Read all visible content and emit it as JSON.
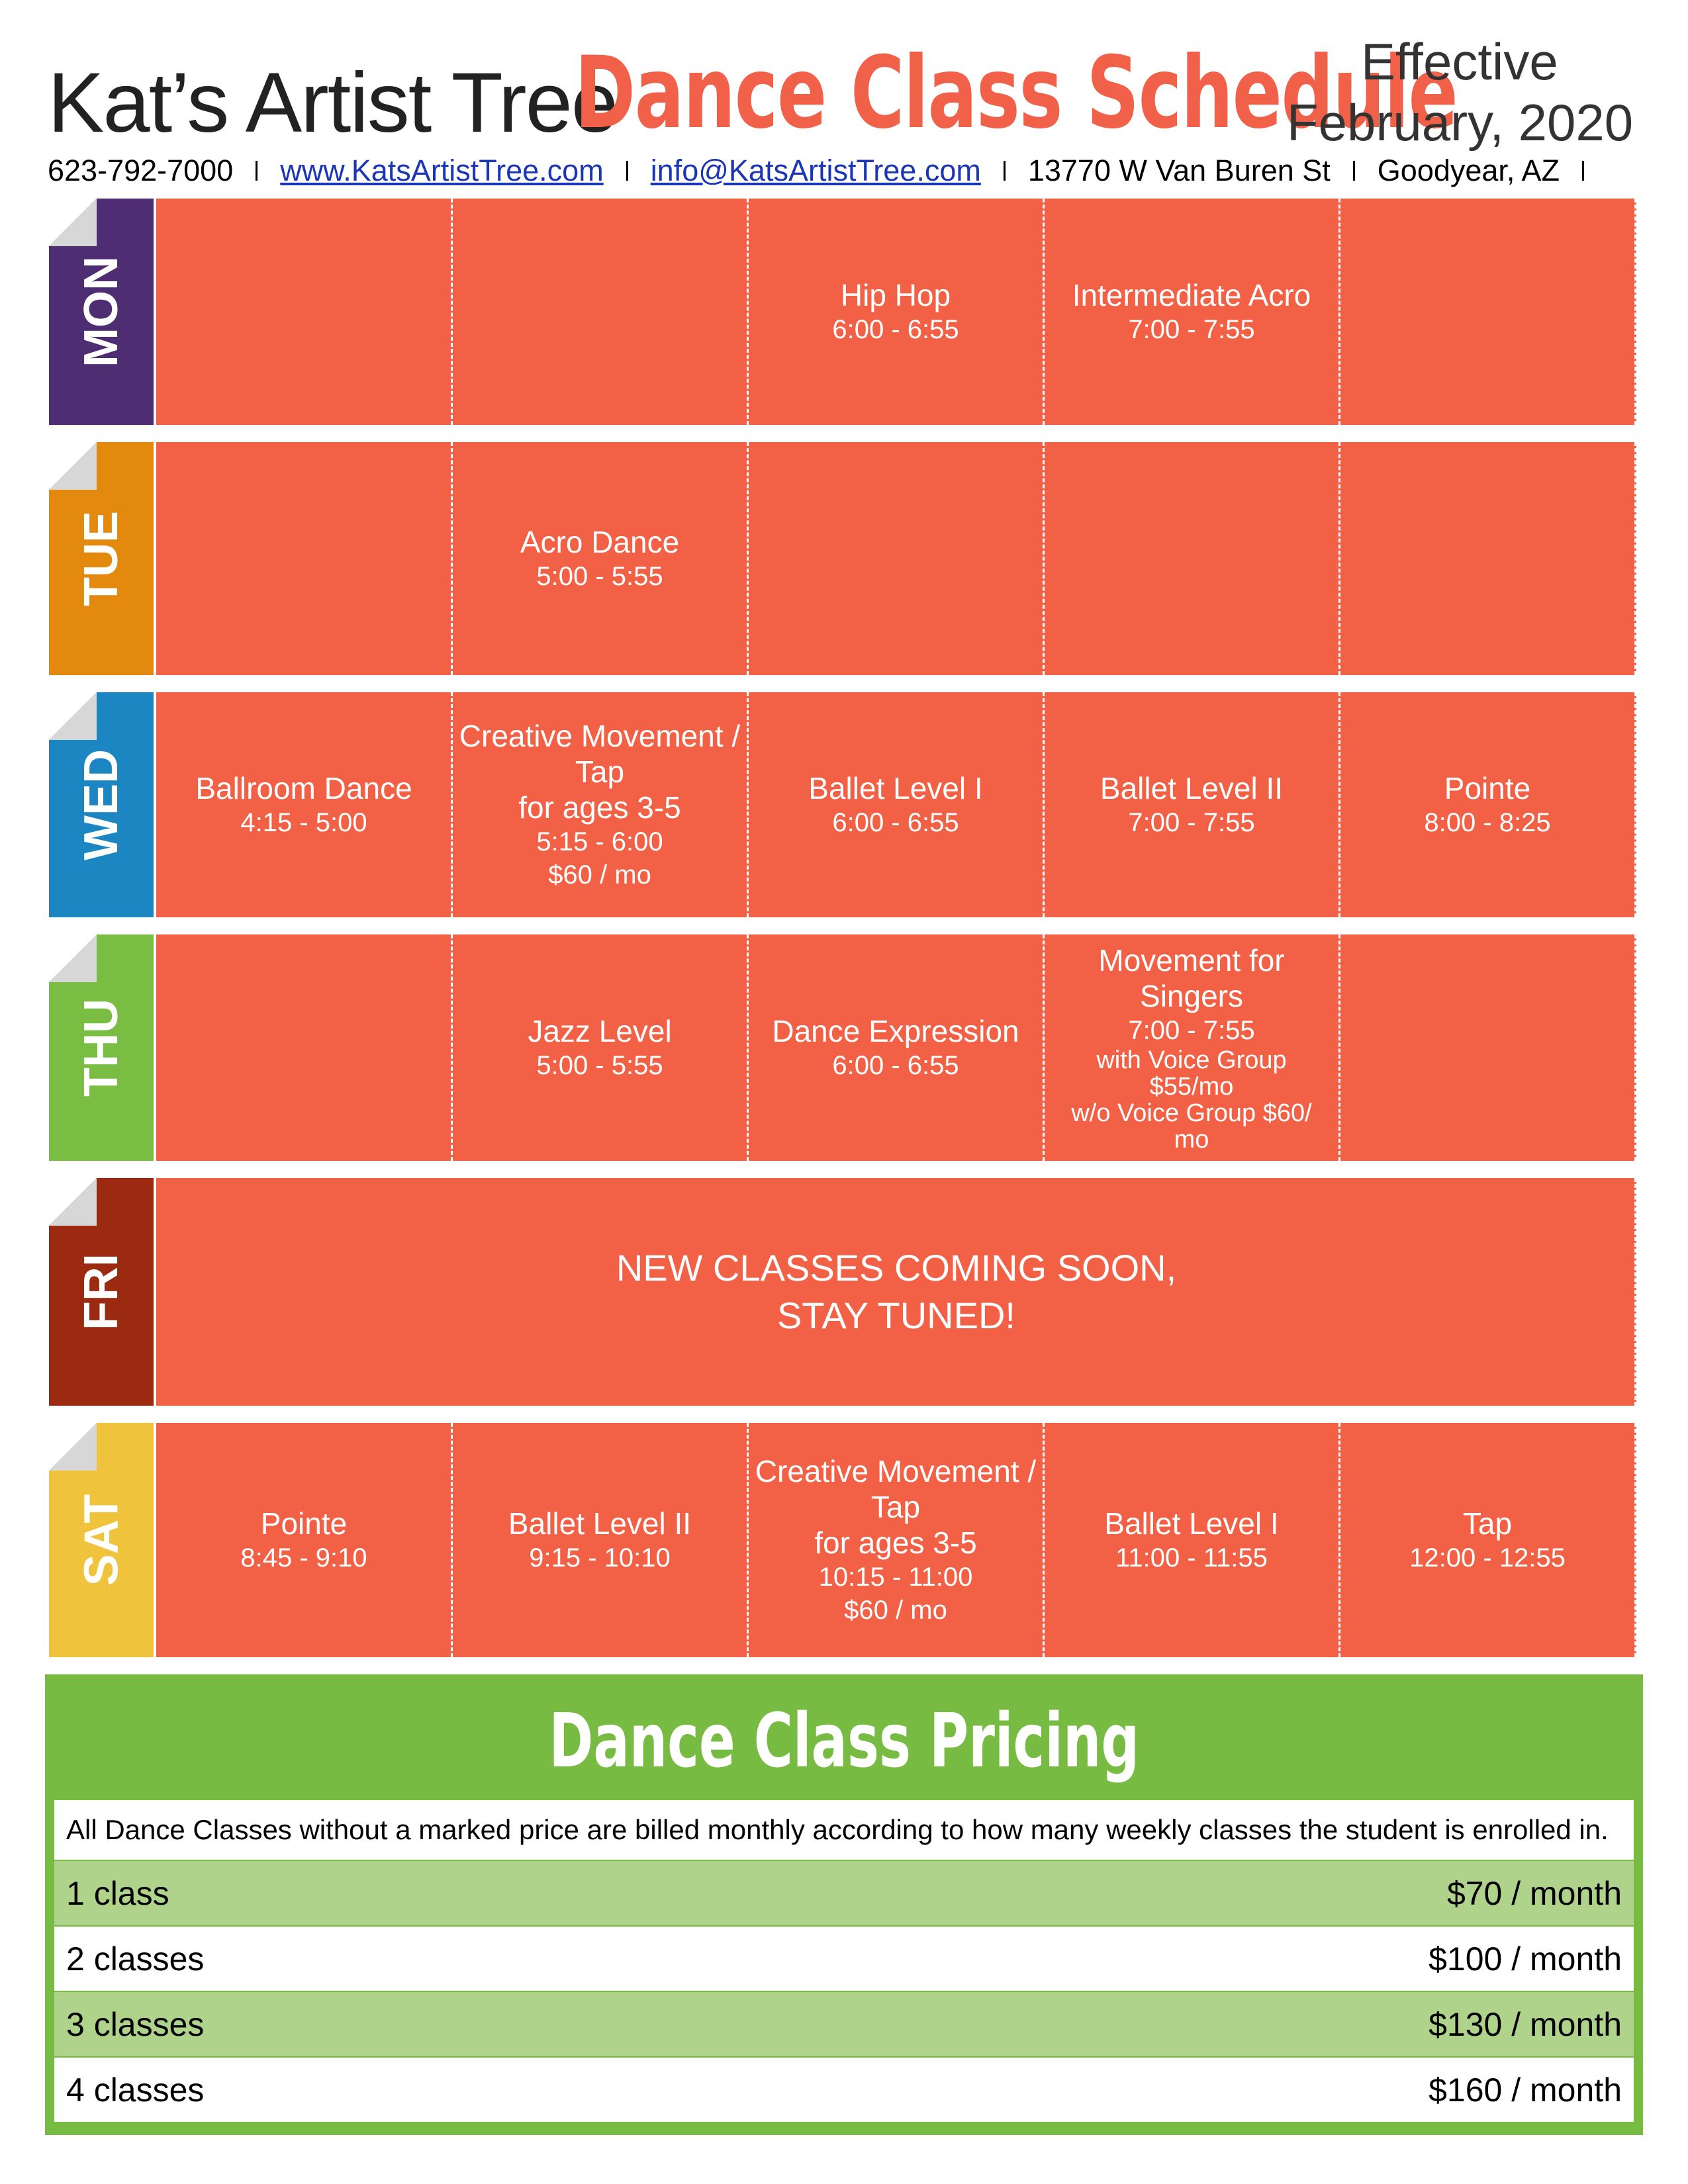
{
  "header": {
    "brand": "Kat’s Artist Tree",
    "title": "Dance Class Schedule",
    "effective_line1": "Effective",
    "effective_line2": "February, 2020",
    "phone": "623-792-7000",
    "website": "www.KatsArtistTree.com",
    "email": "info@KatsArtistTree.com",
    "street": "13770 W Van Buren St",
    "city": "Goodyear, AZ"
  },
  "colors": {
    "cell_bg": "#f26145",
    "mon": "#4f2d73",
    "tue": "#e38a0e",
    "wed": "#1b86c2",
    "thu": "#79bd43",
    "fri": "#9b2a10",
    "sat": "#efc33b",
    "pricing_bg": "#78bb43",
    "pricing_alt": "#afd38b"
  },
  "schedule": {
    "mon": {
      "label": "MON",
      "c3": {
        "name": "Hip Hop",
        "time": "6:00 - 6:55"
      },
      "c4": {
        "name": "Intermediate Acro",
        "time": "7:00 - 7:55"
      }
    },
    "tue": {
      "label": "TUE",
      "c2": {
        "name": "Acro Dance",
        "time": "5:00 - 5:55"
      }
    },
    "wed": {
      "label": "WED",
      "c1": {
        "name": "Ballroom Dance",
        "time": "4:15 - 5:00"
      },
      "c2": {
        "name1": "Creative Movement /",
        "name2": "Tap",
        "name3": "for ages 3-5",
        "time": "5:15 - 6:00",
        "price": "$60 / mo"
      },
      "c3": {
        "name": "Ballet Level I",
        "time": "6:00 - 6:55"
      },
      "c4": {
        "name": "Ballet Level II",
        "time": "7:00 - 7:55"
      },
      "c5": {
        "name": "Pointe",
        "time": "8:00 - 8:25"
      }
    },
    "thu": {
      "label": "THU",
      "c2": {
        "name": "Jazz Level",
        "time": "5:00 - 5:55"
      },
      "c3": {
        "name": "Dance Expression",
        "time": "6:00 - 6:55"
      },
      "c4": {
        "name1": "Movement for",
        "name2": "Singers",
        "time": "7:00 - 7:55",
        "note1": "with Voice Group",
        "note2": "$55/mo",
        "note3": "w/o Voice Group $60/",
        "note4": "mo"
      }
    },
    "fri": {
      "label": "FRI",
      "message1": "NEW CLASSES COMING SOON,",
      "message2": "STAY TUNED!"
    },
    "sat": {
      "label": "SAT",
      "c1": {
        "name": "Pointe",
        "time": "8:45 - 9:10"
      },
      "c2": {
        "name": "Ballet Level II",
        "time": "9:15 - 10:10"
      },
      "c3": {
        "name1": "Creative Movement /",
        "name2": "Tap",
        "name3": "for ages 3-5",
        "time": "10:15 - 11:00",
        "price": "$60 / mo"
      },
      "c4": {
        "name": "Ballet Level I",
        "time": "11:00 - 11:55"
      },
      "c5": {
        "name": "Tap",
        "time": "12:00 - 12:55"
      }
    }
  },
  "pricing": {
    "title": "Dance Class Pricing",
    "note": "All Dance Classes without a marked price are billed monthly according to how many weekly classes the student is enrolled in.",
    "rows": [
      {
        "label": "1 class",
        "price": "$70 / month"
      },
      {
        "label": "2 classes",
        "price": "$100 / month"
      },
      {
        "label": "3 classes",
        "price": "$130 / month"
      },
      {
        "label": "4 classes",
        "price": "$160 / month"
      }
    ]
  }
}
